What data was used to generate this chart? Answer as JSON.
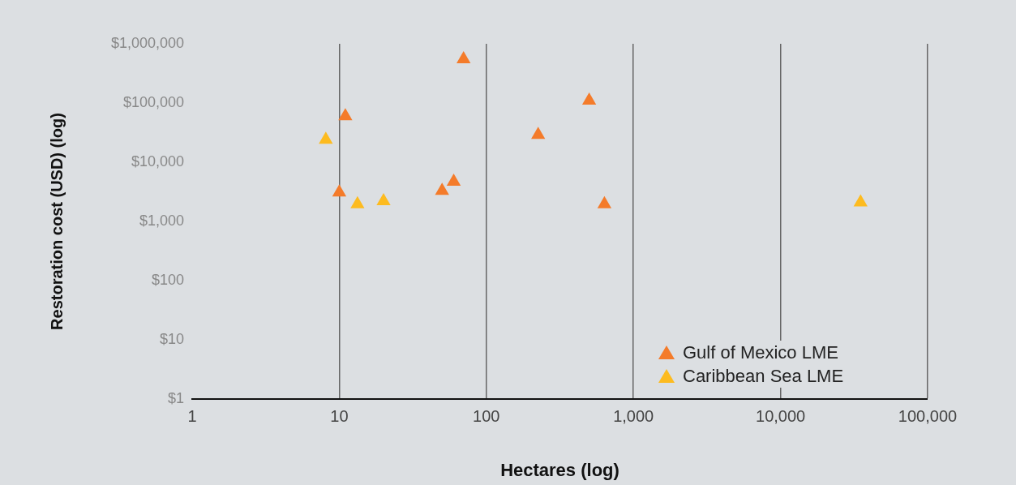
{
  "chart_data": {
    "type": "scatter",
    "xlabel": "Hectares (log)",
    "ylabel": "Restoration cost (USD) (log)",
    "log": "xy",
    "grid": "x",
    "legend": "bottom right",
    "marker": "triangle",
    "xlim": [
      1,
      100000
    ],
    "xticks": [
      1,
      10,
      100,
      {
        "value": 1000,
        "label": "1,000"
      },
      {
        "value": 10000,
        "label": "10,000"
      },
      {
        "value": 100000,
        "label": "100,000"
      }
    ],
    "ylim": [
      1,
      1000000
    ],
    "yticks": [
      {
        "value": 1,
        "label": "$1"
      },
      {
        "value": 10,
        "label": "$10"
      },
      {
        "value": 100,
        "label": "$100"
      },
      {
        "value": 1000,
        "label": "$1,000"
      },
      {
        "value": 10000,
        "label": "$10,000"
      },
      {
        "value": 100000,
        "label": "$100,000"
      },
      {
        "value": 1000000,
        "label": "$1,000,000"
      }
    ],
    "series": [
      {
        "name": "Gulf of Mexico LME",
        "color": "#f47b2a",
        "x": [
          70,
          11,
          500,
          225,
          60,
          50,
          10,
          635
        ],
        "values": [
          550000,
          60000,
          110000,
          29000,
          4700,
          3300,
          3100,
          1950
        ]
      },
      {
        "name": "Caribbean Sea LME",
        "color": "#fdbb1f",
        "x": [
          8.1,
          13.3,
          20,
          35000
        ],
        "values": [
          24000,
          1950,
          2200,
          2100
        ]
      }
    ]
  }
}
